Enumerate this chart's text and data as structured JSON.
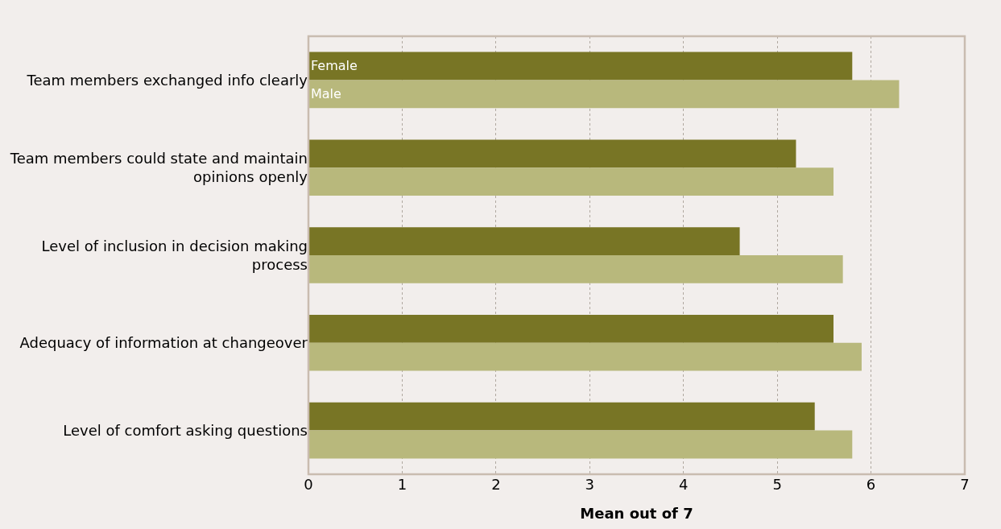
{
  "chart_data": {
    "type": "bar",
    "orientation": "horizontal",
    "xlabel": "Mean out of 7",
    "categories": [
      "Team members exchanged info clearly",
      "Team members could state and maintain opinions openly",
      "Level of inclusion in decision making process",
      "Adequacy of information at changeover",
      "Level of comfort asking questions"
    ],
    "series": [
      {
        "name": "Female",
        "color": "#787525",
        "values": [
          5.8,
          5.2,
          4.6,
          5.6,
          5.4
        ]
      },
      {
        "name": "Male",
        "color": "#b8b87c",
        "values": [
          6.3,
          5.6,
          5.7,
          5.9,
          5.8
        ]
      }
    ],
    "xlim": [
      0,
      7
    ],
    "xticks": [
      0,
      1,
      2,
      3,
      4,
      5,
      6,
      7
    ],
    "grid": "x",
    "legend": false
  }
}
